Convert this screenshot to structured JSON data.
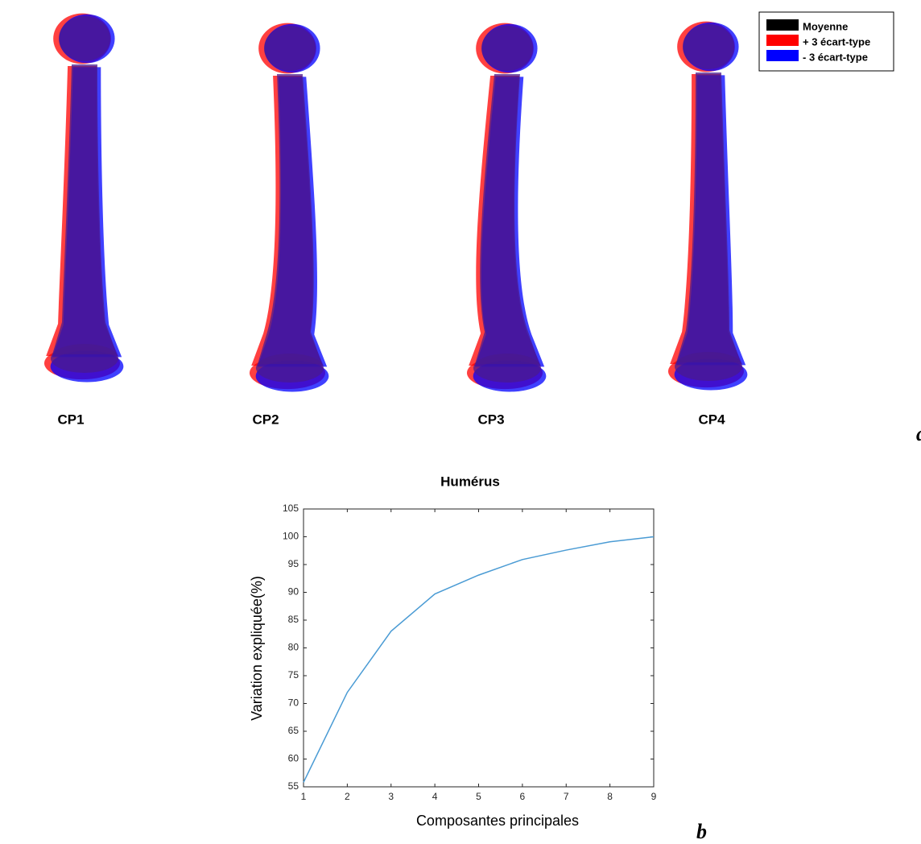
{
  "figure": {
    "panel_a": {
      "labels": [
        "CP1",
        "CP2",
        "CP3",
        "CP4"
      ],
      "legend": [
        {
          "name": "Moyenne",
          "color": "#000000"
        },
        {
          "name": "+ 3 écart-type",
          "color": "#ff0000"
        },
        {
          "name": "- 3 écart-type",
          "color": "#0000ff"
        }
      ],
      "letter": "a"
    },
    "panel_b": {
      "letter": "b"
    }
  },
  "chart_data": {
    "type": "line",
    "title": "Humérus",
    "x_label": "Composantes principales",
    "y_label": "Variation expliquée(%)",
    "x": [
      1,
      2,
      3,
      4,
      5,
      6,
      7,
      8,
      9
    ],
    "values": [
      55.8,
      72,
      83,
      89.7,
      93.1,
      95.9,
      97.6,
      99.1,
      100
    ],
    "color": "#4a9bd4",
    "xlim": [
      1,
      9
    ],
    "xticks": [
      1,
      2,
      3,
      4,
      5,
      6,
      7,
      8,
      9
    ],
    "ylim": [
      55,
      105
    ],
    "yticks": [
      55,
      60,
      65,
      70,
      75,
      80,
      85,
      90,
      95,
      100,
      105
    ]
  }
}
